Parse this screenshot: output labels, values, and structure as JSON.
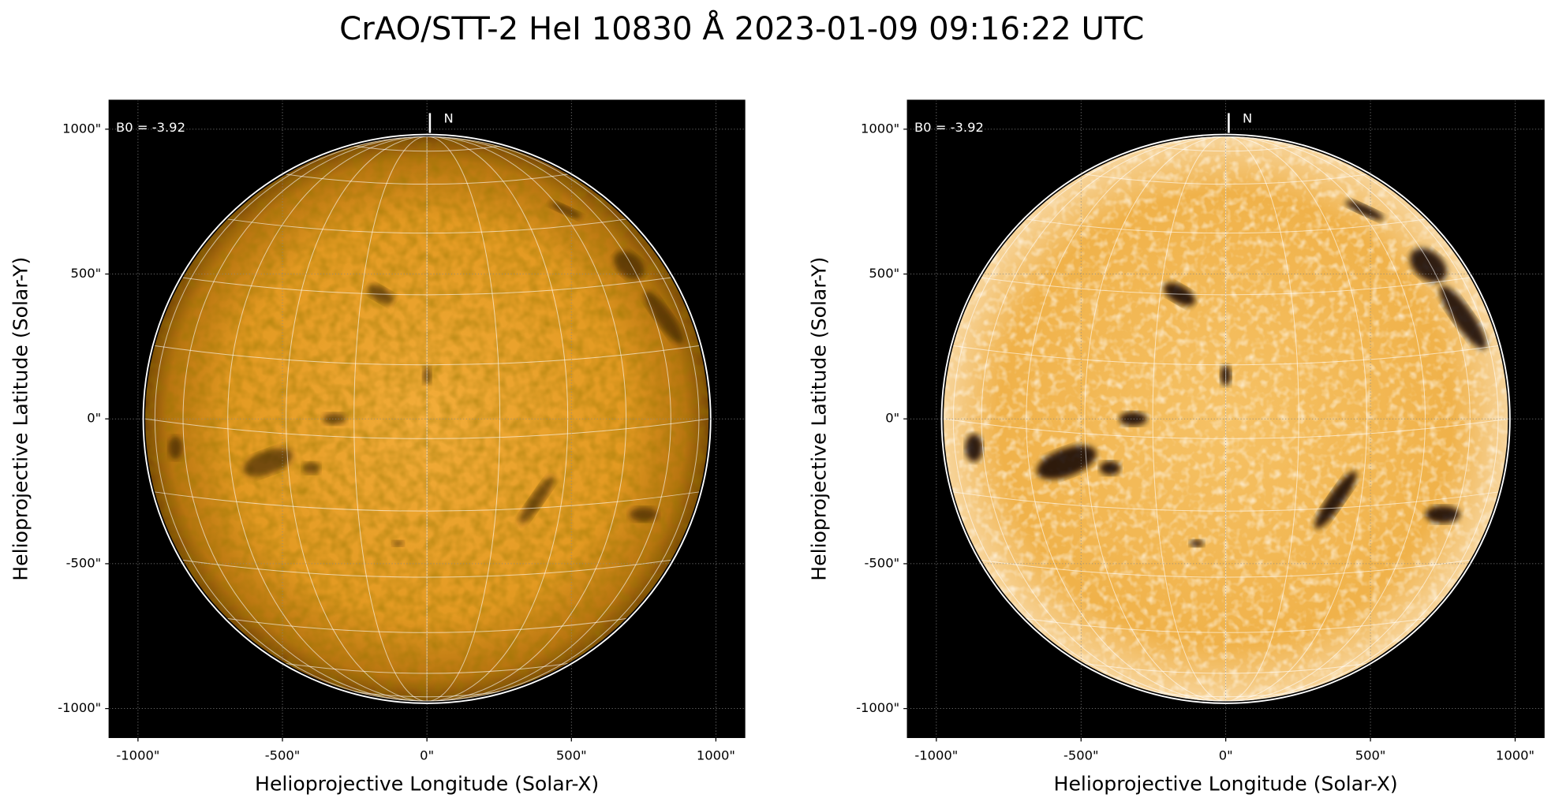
{
  "title": "CrAO/STT-2 HeI 10830 Å 2023-01-09 09:16:22 UTC",
  "chart_data": [
    {
      "type": "image",
      "xlabel": "Helioprojective Longitude (Solar-X)",
      "ylabel": "Helioprojective Latitude (Solar-Y)",
      "xlim": [
        -1100,
        1100
      ],
      "ylim": [
        -1100,
        1100
      ],
      "xticks": [
        {
          "value": -1000,
          "label": "-1000\""
        },
        {
          "value": -500,
          "label": "-500\""
        },
        {
          "value": 0,
          "label": "0\""
        },
        {
          "value": 500,
          "label": "500\""
        },
        {
          "value": 1000,
          "label": "1000\""
        }
      ],
      "yticks": [
        {
          "value": -1000,
          "label": "-1000\""
        },
        {
          "value": -500,
          "label": "-500\""
        },
        {
          "value": 0,
          "label": "0\""
        },
        {
          "value": 500,
          "label": "500\""
        },
        {
          "value": 1000,
          "label": "1000\""
        }
      ],
      "grid": true,
      "annotations": [
        "B0 = -3.92",
        "N"
      ]
    },
    {
      "type": "image",
      "xlabel": "Helioprojective Longitude (Solar-X)",
      "ylabel": "Helioprojective Latitude (Solar-Y)",
      "xlim": [
        -1100,
        1100
      ],
      "ylim": [
        -1100,
        1100
      ],
      "xticks": [
        {
          "value": -1000,
          "label": "-1000\""
        },
        {
          "value": -500,
          "label": "-500\""
        },
        {
          "value": 0,
          "label": "0\""
        },
        {
          "value": 500,
          "label": "500\""
        },
        {
          "value": 1000,
          "label": "1000\""
        }
      ],
      "yticks": [
        {
          "value": -1000,
          "label": "-1000\""
        },
        {
          "value": -500,
          "label": "-500\""
        },
        {
          "value": 0,
          "label": "0\""
        },
        {
          "value": 500,
          "label": "500\""
        },
        {
          "value": 1000,
          "label": "1000\""
        }
      ],
      "grid": true,
      "annotations": [
        "B0 = -3.92",
        "N"
      ]
    }
  ]
}
